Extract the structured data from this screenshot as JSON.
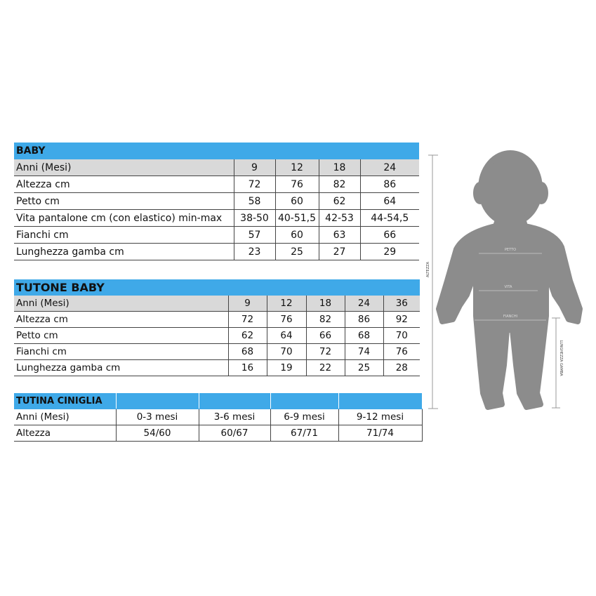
{
  "baby": {
    "title": "BABY",
    "header": [
      "Anni (Mesi)",
      "9",
      "12",
      "18",
      "24"
    ],
    "rows": [
      [
        "Altezza cm",
        "72",
        "76",
        "82",
        "86"
      ],
      [
        "Petto cm",
        "58",
        "60",
        "62",
        "64"
      ],
      [
        "Vita pantalone cm (con elastico) min-max",
        "38-50",
        "40-51,5",
        "42-53",
        "44-54,5"
      ],
      [
        "Fianchi cm",
        "57",
        "60",
        "63",
        "66"
      ],
      [
        "Lunghezza gamba cm",
        "23",
        "25",
        "27",
        "29"
      ]
    ]
  },
  "tutone": {
    "title": "TUTONE BABY",
    "header": [
      "Anni (Mesi)",
      "9",
      "12",
      "18",
      "24",
      "36"
    ],
    "rows": [
      [
        "Altezza cm",
        "72",
        "76",
        "82",
        "86",
        "92"
      ],
      [
        "Petto cm",
        "62",
        "64",
        "66",
        "68",
        "70"
      ],
      [
        "Fianchi cm",
        "68",
        "70",
        "72",
        "74",
        "76"
      ],
      [
        "Lunghezza gamba cm",
        "16",
        "19",
        "22",
        "25",
        "28"
      ]
    ]
  },
  "tutina": {
    "title": "TUTINA CINIGLIA",
    "header": [
      "Anni (Mesi)",
      "0-3 mesi",
      "3-6 mesi",
      "6-9 mesi",
      "9-12 mesi"
    ],
    "rows": [
      [
        "Altezza",
        "54/60",
        "60/67",
        "67/71",
        "71/74"
      ]
    ]
  },
  "figure": {
    "height_label": "ALTEZZA",
    "chest_label": "PETTO",
    "waist_label": "VITA",
    "hips_label": "FIANCHI",
    "leg_label": "LUNGHEZZA GAMBA"
  },
  "colors": {
    "header_blue": "#3fa9e8",
    "header_gray": "#d9d9d9",
    "silhouette": "#8c8c8c"
  }
}
